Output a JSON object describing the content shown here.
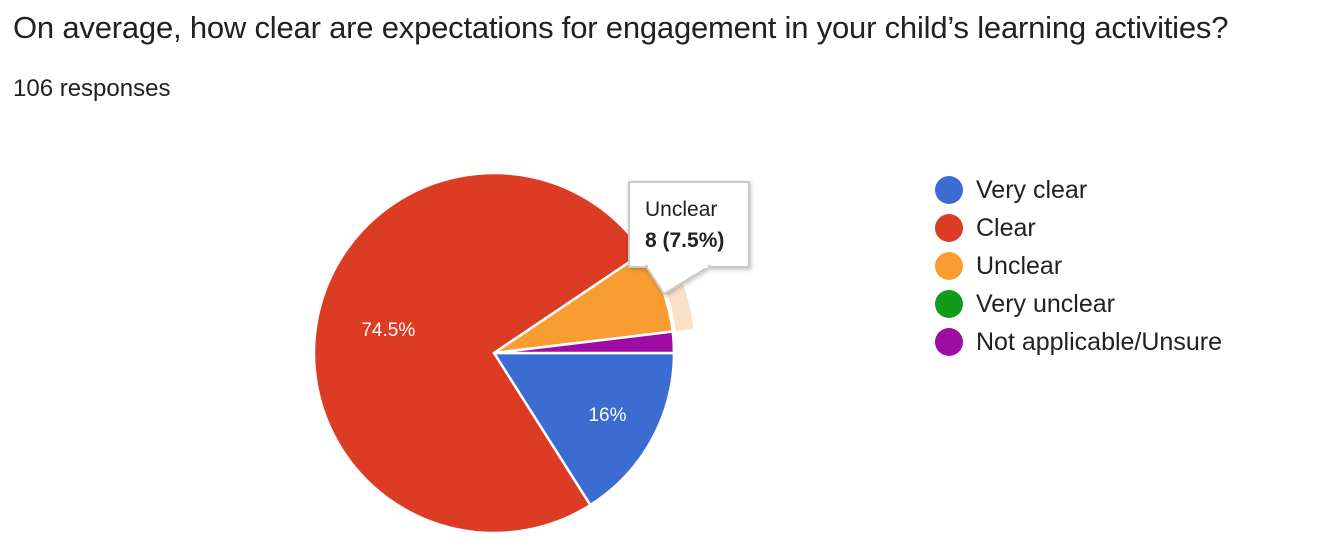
{
  "header": {
    "title": "On average, how clear are expectations for engagement in your child’s learning activities?",
    "responses": "106 responses"
  },
  "chart_data": {
    "type": "pie",
    "title": "On average, how clear are expectations for engagement in your child’s learning activities?",
    "subtitle": "106 responses",
    "total_responses": 106,
    "legend_position": "right",
    "start_angle": "3-oclock-clockwise",
    "slices": [
      {
        "label": "Very clear",
        "value": 16.0,
        "pct_label": "16%",
        "color": "#3c6bd2"
      },
      {
        "label": "Clear",
        "value": 74.5,
        "pct_label": "74.5%",
        "color": "#db3c23"
      },
      {
        "label": "Unclear",
        "value": 7.5,
        "count": 8,
        "color": "#fa9d31",
        "highlighted": true
      },
      {
        "label": "Very unclear",
        "value": 0,
        "color": "#109b1c"
      },
      {
        "label": "Not applicable/Unsure",
        "value": 1.9,
        "color": "#9e0ca3"
      }
    ],
    "highlight_color": "#fbe0c7",
    "tooltip": {
      "title": "Unclear",
      "value": "8 (7.5%)"
    }
  }
}
